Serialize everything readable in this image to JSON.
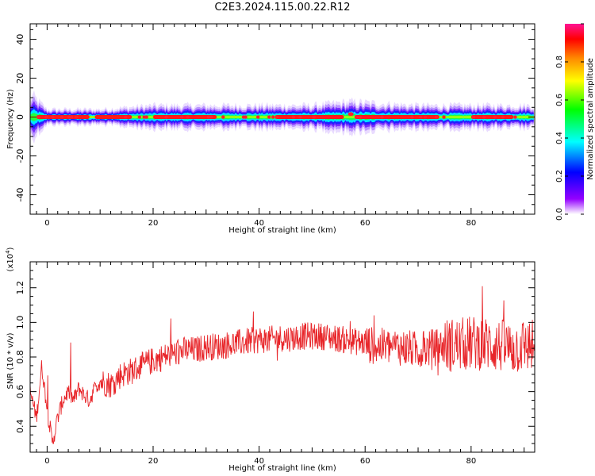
{
  "title": "C2E3.2024.115.00.22.R12",
  "chart_data": [
    {
      "type": "heatmap",
      "ylabel": "Frequency (Hz)",
      "xlabel": "Height of straight line (km)",
      "xlim": [
        -3.2,
        92
      ],
      "ylim": [
        -50,
        48
      ],
      "xticks": [
        0,
        20,
        40,
        60,
        80
      ],
      "yticks": [
        40,
        20,
        0,
        -20,
        -40
      ],
      "colorbar": {
        "label": "Normalized spectral amplitude",
        "range": [
          0,
          1
        ],
        "ticks": [
          0.0,
          0.2,
          0.4,
          0.6,
          0.8
        ],
        "tick_labels": [
          "0.0",
          "0.2",
          "0.4",
          "0.6",
          "0.8"
        ],
        "colors": [
          "#ffffff",
          "#8800ff",
          "#0000ff",
          "#00ffff",
          "#00ff00",
          "#ffff00",
          "#ff8800",
          "#ff0000",
          "#ff1493"
        ]
      },
      "band_center_hz": 0,
      "band_halfwidth_hz": [
        [
          -3,
          6
        ],
        [
          0,
          2
        ],
        [
          10,
          2
        ],
        [
          20,
          3
        ],
        [
          30,
          3
        ],
        [
          40,
          3
        ],
        [
          50,
          3
        ],
        [
          57,
          4
        ],
        [
          70,
          3
        ],
        [
          80,
          3
        ],
        [
          92,
          3
        ]
      ],
      "peak_segments_km": [
        [
          -2,
          8
        ],
        [
          9,
          16
        ],
        [
          20,
          32
        ],
        [
          43,
          56
        ],
        [
          58,
          74
        ],
        [
          80,
          88
        ]
      ]
    },
    {
      "type": "line",
      "ylabel": "SNR (10 * v/v)",
      "xlabel": "Height of straight line (km)",
      "ylabel_exponent": "(x10",
      "ylabel_exponent_power": "4",
      "xlim": [
        -3.2,
        92
      ],
      "ylim": [
        0.25,
        1.35
      ],
      "xticks": [
        0,
        20,
        40,
        60,
        80
      ],
      "yticks": [
        0.4,
        0.6,
        0.8,
        1.0,
        1.2
      ],
      "ytick_labels": [
        "0.4",
        "0.6",
        "0.8",
        "1.0",
        "1.2"
      ],
      "series": [
        {
          "color": "#e8262a",
          "x": [
            -3.2,
            -2,
            -1,
            0,
            1,
            2,
            3,
            4,
            5,
            6,
            7,
            8,
            9,
            10,
            12,
            14,
            16,
            18,
            20,
            22,
            24,
            26,
            28,
            30,
            32,
            34,
            36,
            38,
            40,
            42,
            44,
            46,
            48,
            50,
            52,
            54,
            56,
            58,
            60,
            62,
            64,
            66,
            68,
            70,
            72,
            74,
            76,
            78,
            80,
            82,
            84,
            86,
            88,
            90,
            92
          ],
          "y": [
            0.6,
            0.45,
            0.75,
            0.5,
            0.3,
            0.45,
            0.55,
            0.6,
            0.55,
            0.62,
            0.58,
            0.55,
            0.62,
            0.66,
            0.64,
            0.7,
            0.72,
            0.75,
            0.78,
            0.8,
            0.82,
            0.84,
            0.84,
            0.86,
            0.86,
            0.87,
            0.88,
            0.89,
            0.9,
            0.9,
            0.91,
            0.91,
            0.92,
            0.92,
            0.92,
            0.91,
            0.9,
            0.89,
            0.88,
            0.86,
            0.86,
            0.86,
            0.85,
            0.84,
            0.85,
            0.86,
            0.87,
            0.87,
            0.88,
            0.88,
            0.87,
            0.86,
            0.85,
            0.87,
            0.86
          ]
        }
      ]
    }
  ]
}
